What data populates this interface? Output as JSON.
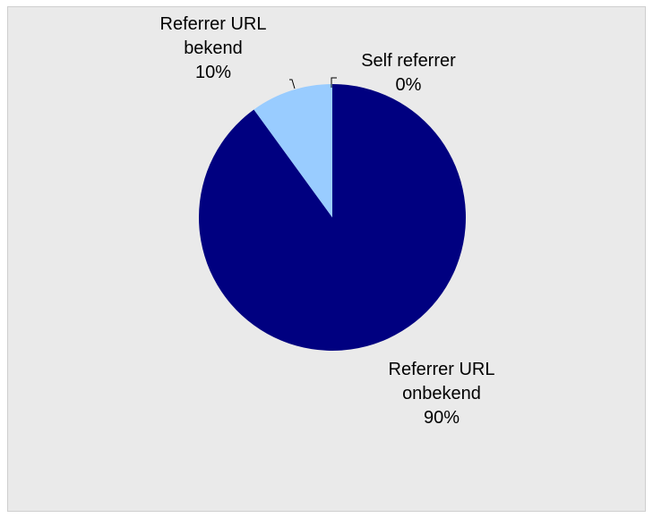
{
  "chart_data": {
    "type": "pie",
    "slices": [
      {
        "label": "Referrer URL onbekend",
        "label_lines": [
          "Referrer URL",
          "onbekend"
        ],
        "value": 90,
        "pct_text": "90%",
        "color": "#000080"
      },
      {
        "label": "Referrer URL bekend",
        "label_lines": [
          "Referrer URL",
          "bekend"
        ],
        "value": 10,
        "pct_text": "10%",
        "color": "#99ccff"
      },
      {
        "label": "Self referrer",
        "label_lines": [
          "Self referrer"
        ],
        "value": 0,
        "pct_text": "0%",
        "color": "#99ccff"
      }
    ],
    "start_angle": "12 o'clock",
    "direction": "clockwise"
  }
}
